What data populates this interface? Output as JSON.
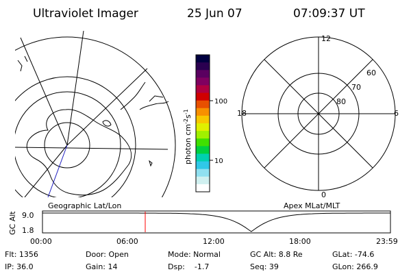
{
  "header": {
    "instrument": "Ultraviolet Imager",
    "date": "25 Jun 07",
    "time": "07:09:37 UT"
  },
  "left_panel": {
    "caption": "Geographic Lat/Lon"
  },
  "right_panel": {
    "caption": "Apex MLat/MLT",
    "mlt_labels": {
      "top": "12",
      "bottom": "0",
      "left": "18",
      "right": "6"
    },
    "lat_labels": [
      "60",
      "70",
      "80"
    ]
  },
  "colorbar": {
    "unit_label": "photon cm",
    "unit_exp1": "-2",
    "unit_mid": "s",
    "unit_exp2": "-1",
    "ticks": [
      "100",
      "10"
    ],
    "scale": "log",
    "colors": [
      "#000040",
      "#2a0050",
      "#5a0060",
      "#800060",
      "#b00040",
      "#d00000",
      "#e85000",
      "#f89000",
      "#f8c800",
      "#e0f000",
      "#a0f000",
      "#40e000",
      "#00d040",
      "#00d0b0",
      "#30c8e8",
      "#90e0f0",
      "#d0f0f0",
      "#ffffff"
    ]
  },
  "altitude_plot": {
    "axis_label": "GC Alt",
    "y_ticks": [
      "9.0",
      "1.8"
    ],
    "y_range": [
      1.8,
      9.0
    ],
    "x_ticks": [
      "00:00",
      "06:00",
      "12:00",
      "18:00",
      "23:59"
    ],
    "marker_color": "#ff0000",
    "curve_color": "#000000"
  },
  "status": {
    "row1": {
      "flt": "Flt: 1356",
      "door": "Door: Open",
      "mode": "Mode: Normal",
      "gcalt": "GC Alt: 8.8 Re",
      "glat": "GLat: -74.6"
    },
    "row2": {
      "ip": "IP: 36.0",
      "gain": "Gain: 14",
      "dsp": "Dsp:    -1.7",
      "seq": "Seq: 39",
      "glon": "GLon: 266.9"
    }
  }
}
